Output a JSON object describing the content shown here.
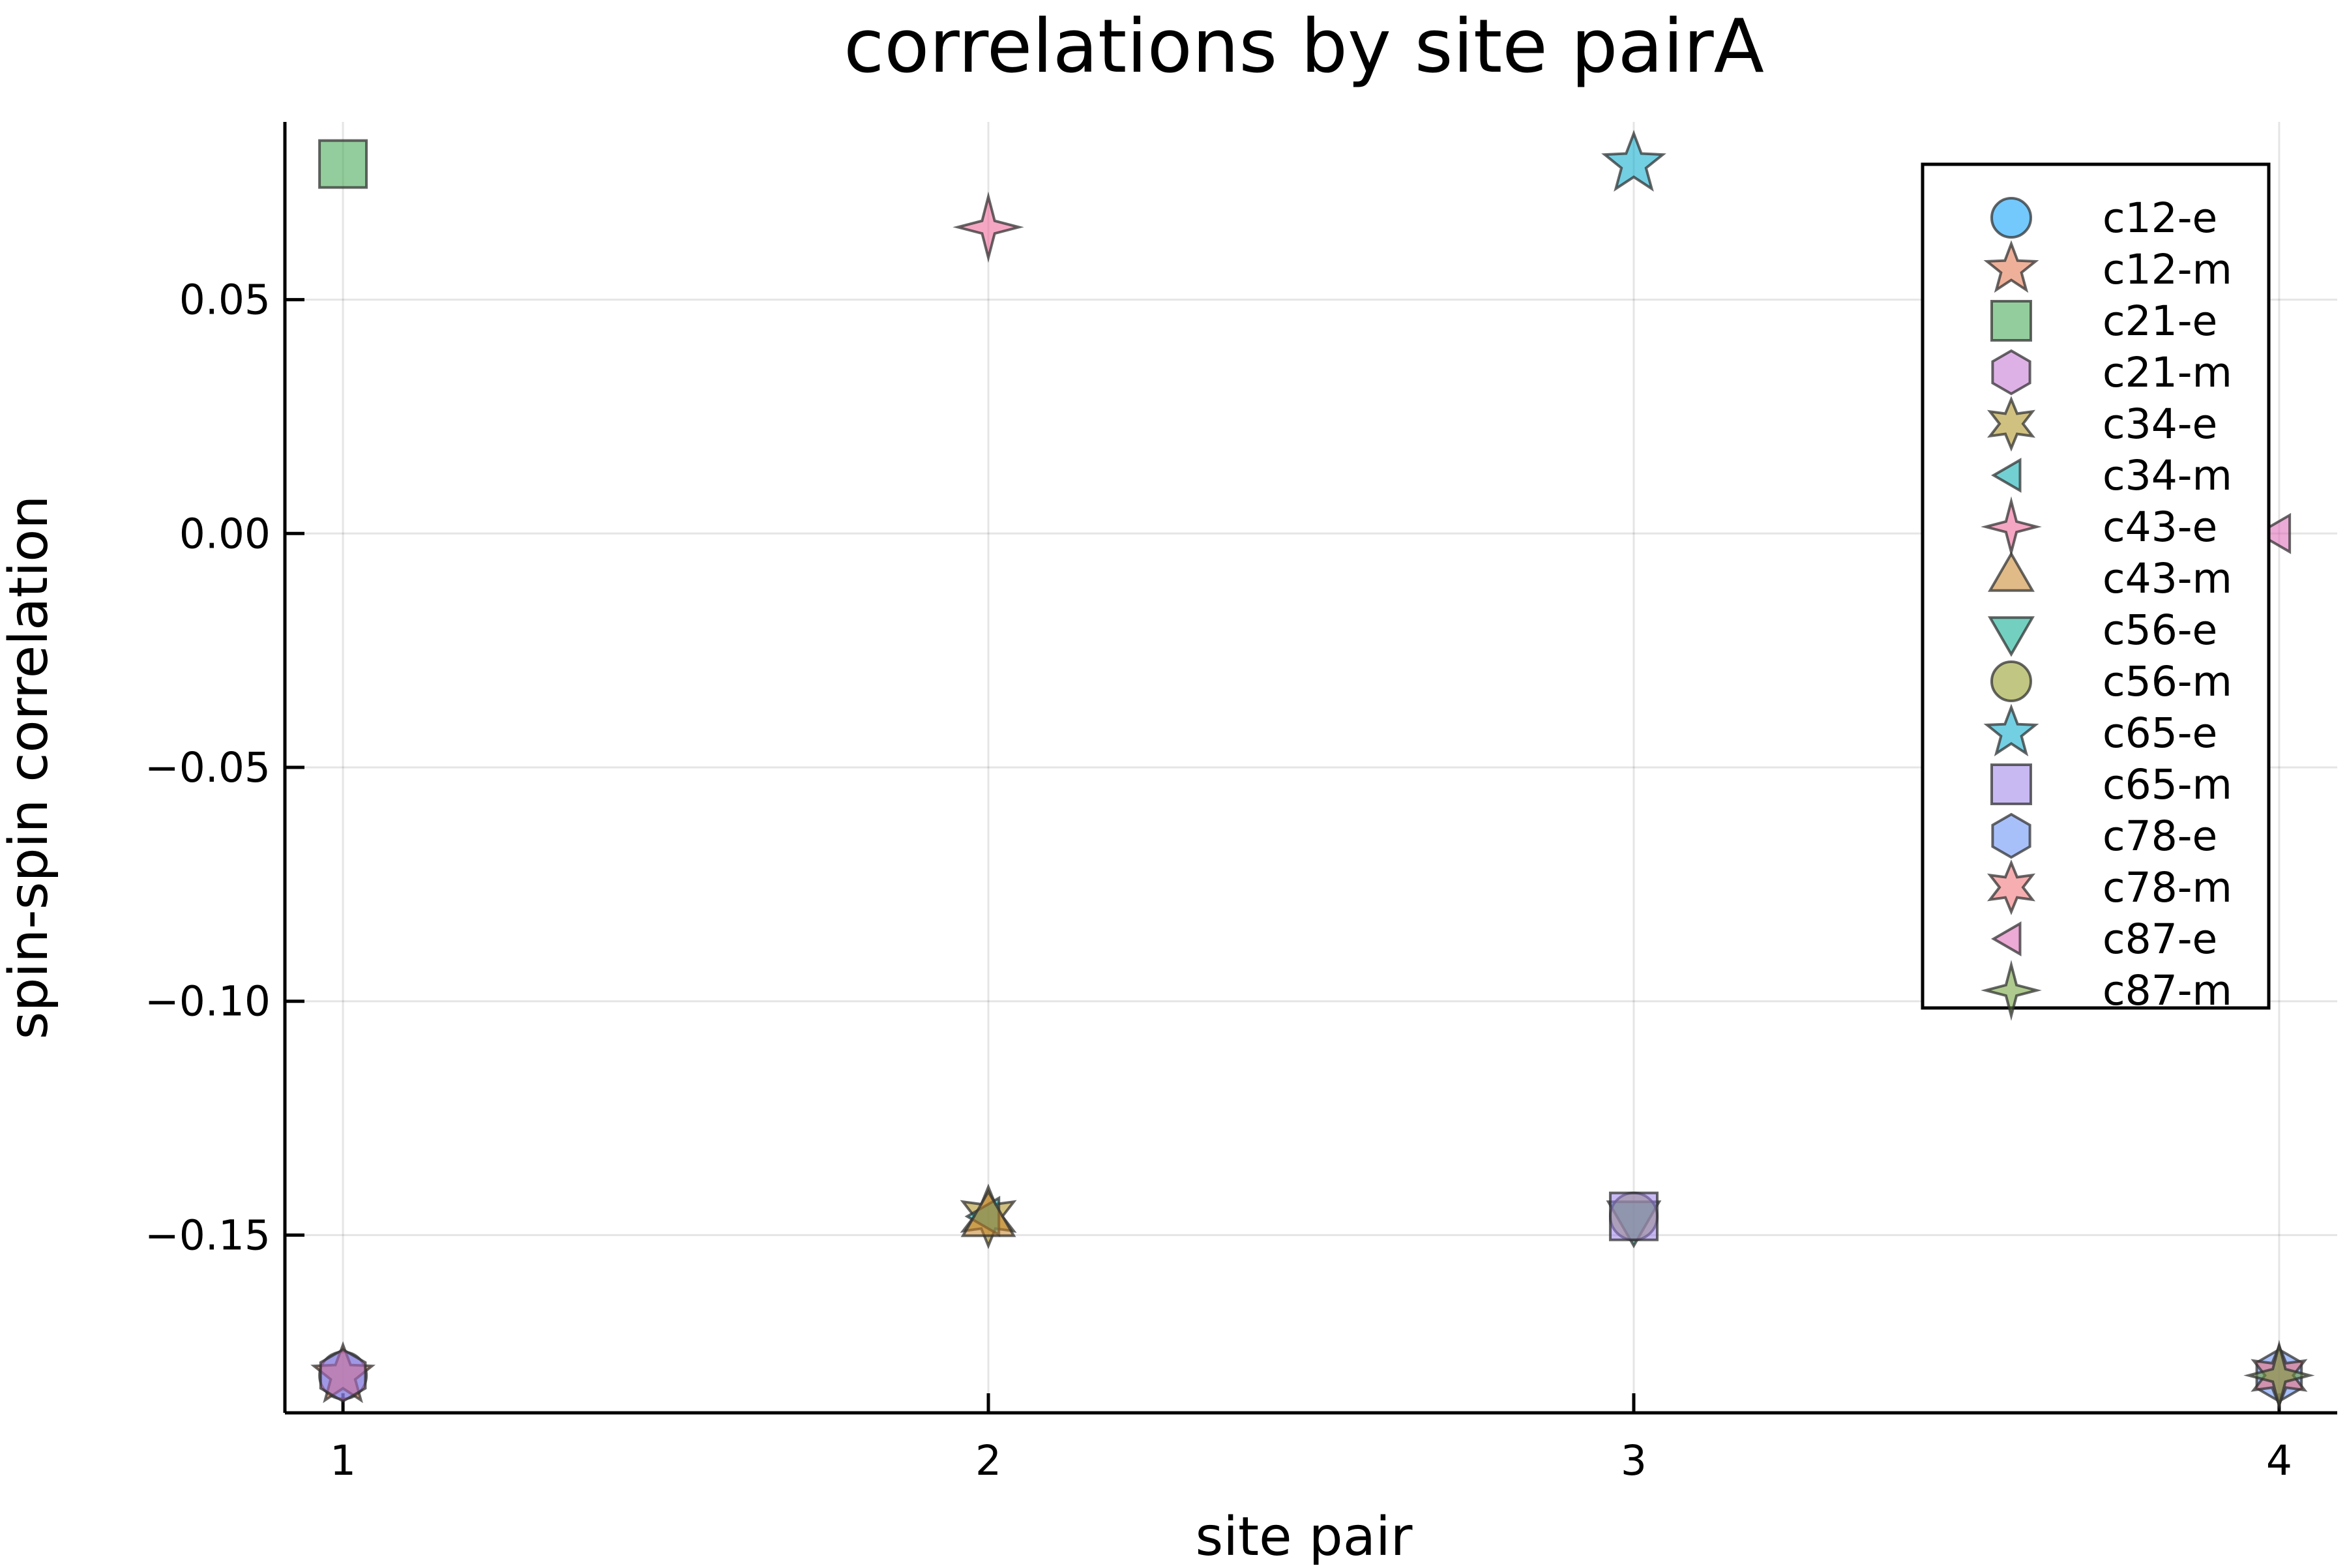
{
  "chart_data": {
    "type": "scatter",
    "title": "correlations by site pairA",
    "xlabel": "site pair",
    "ylabel": "spin-spin correlation",
    "xlim": [
      0.91,
      4.09
    ],
    "ylim": [
      -0.188,
      0.088
    ],
    "xticks": [
      1,
      2,
      3,
      4
    ],
    "xtick_labels": [
      "1",
      "2",
      "3",
      "4"
    ],
    "yticks": [
      -0.15,
      -0.1,
      -0.05,
      0.0,
      0.05
    ],
    "ytick_labels": [
      "−0.15",
      "−0.10",
      "−0.05",
      "0.00",
      "0.05"
    ],
    "grid": true,
    "legend_position": "top-right",
    "series": [
      {
        "name": "c12-e",
        "marker": "circle",
        "color": "#009af9",
        "x": [
          1
        ],
        "y": [
          -0.18
        ]
      },
      {
        "name": "c12-m",
        "marker": "star5",
        "color": "#e26f46",
        "x": [
          1
        ],
        "y": [
          -0.18
        ]
      },
      {
        "name": "c21-e",
        "marker": "square",
        "color": "#3da44d",
        "x": [
          1
        ],
        "y": [
          0.079
        ]
      },
      {
        "name": "c21-m",
        "marker": "hexagon",
        "color": "#c271d2",
        "x": [
          1
        ],
        "y": [
          -0.18
        ]
      },
      {
        "name": "c34-e",
        "marker": "star6",
        "color": "#ac8e18",
        "x": [
          2
        ],
        "y": [
          -0.146
        ]
      },
      {
        "name": "c34-m",
        "marker": "ltriangle",
        "color": "#00a9ad",
        "x": [
          2
        ],
        "y": [
          -0.146
        ]
      },
      {
        "name": "c43-e",
        "marker": "star4",
        "color": "#ed5d92",
        "x": [
          2
        ],
        "y": [
          0.0655
        ]
      },
      {
        "name": "c43-m",
        "marker": "utriangle",
        "color": "#c68225",
        "x": [
          2
        ],
        "y": [
          -0.147
        ]
      },
      {
        "name": "c56-e",
        "marker": "dtriangle",
        "color": "#00a98d",
        "x": [
          3
        ],
        "y": [
          -0.146
        ]
      },
      {
        "name": "c56-m",
        "marker": "circle",
        "color": "#8e971e",
        "x": [
          3
        ],
        "y": [
          -0.146
        ]
      },
      {
        "name": "c65-e",
        "marker": "star5",
        "color": "#00a8cb",
        "x": [
          3
        ],
        "y": [
          0.079
        ]
      },
      {
        "name": "c65-m",
        "marker": "square",
        "color": "#9b7fe9",
        "x": [
          3
        ],
        "y": [
          -0.146
        ]
      },
      {
        "name": "c78-e",
        "marker": "hexagon",
        "color": "#618df6",
        "x": [
          4
        ],
        "y": [
          -0.18
        ]
      },
      {
        "name": "c78-m",
        "marker": "star6",
        "color": "#f16c6f",
        "x": [
          4
        ],
        "y": [
          -0.18
        ]
      },
      {
        "name": "c87-e",
        "marker": "ltriangle",
        "color": "#dd64b5",
        "x": [
          4
        ],
        "y": [
          0.0
        ]
      },
      {
        "name": "c87-m",
        "marker": "star4",
        "color": "#6b9e32",
        "x": [
          4
        ],
        "y": [
          -0.18
        ]
      }
    ]
  }
}
